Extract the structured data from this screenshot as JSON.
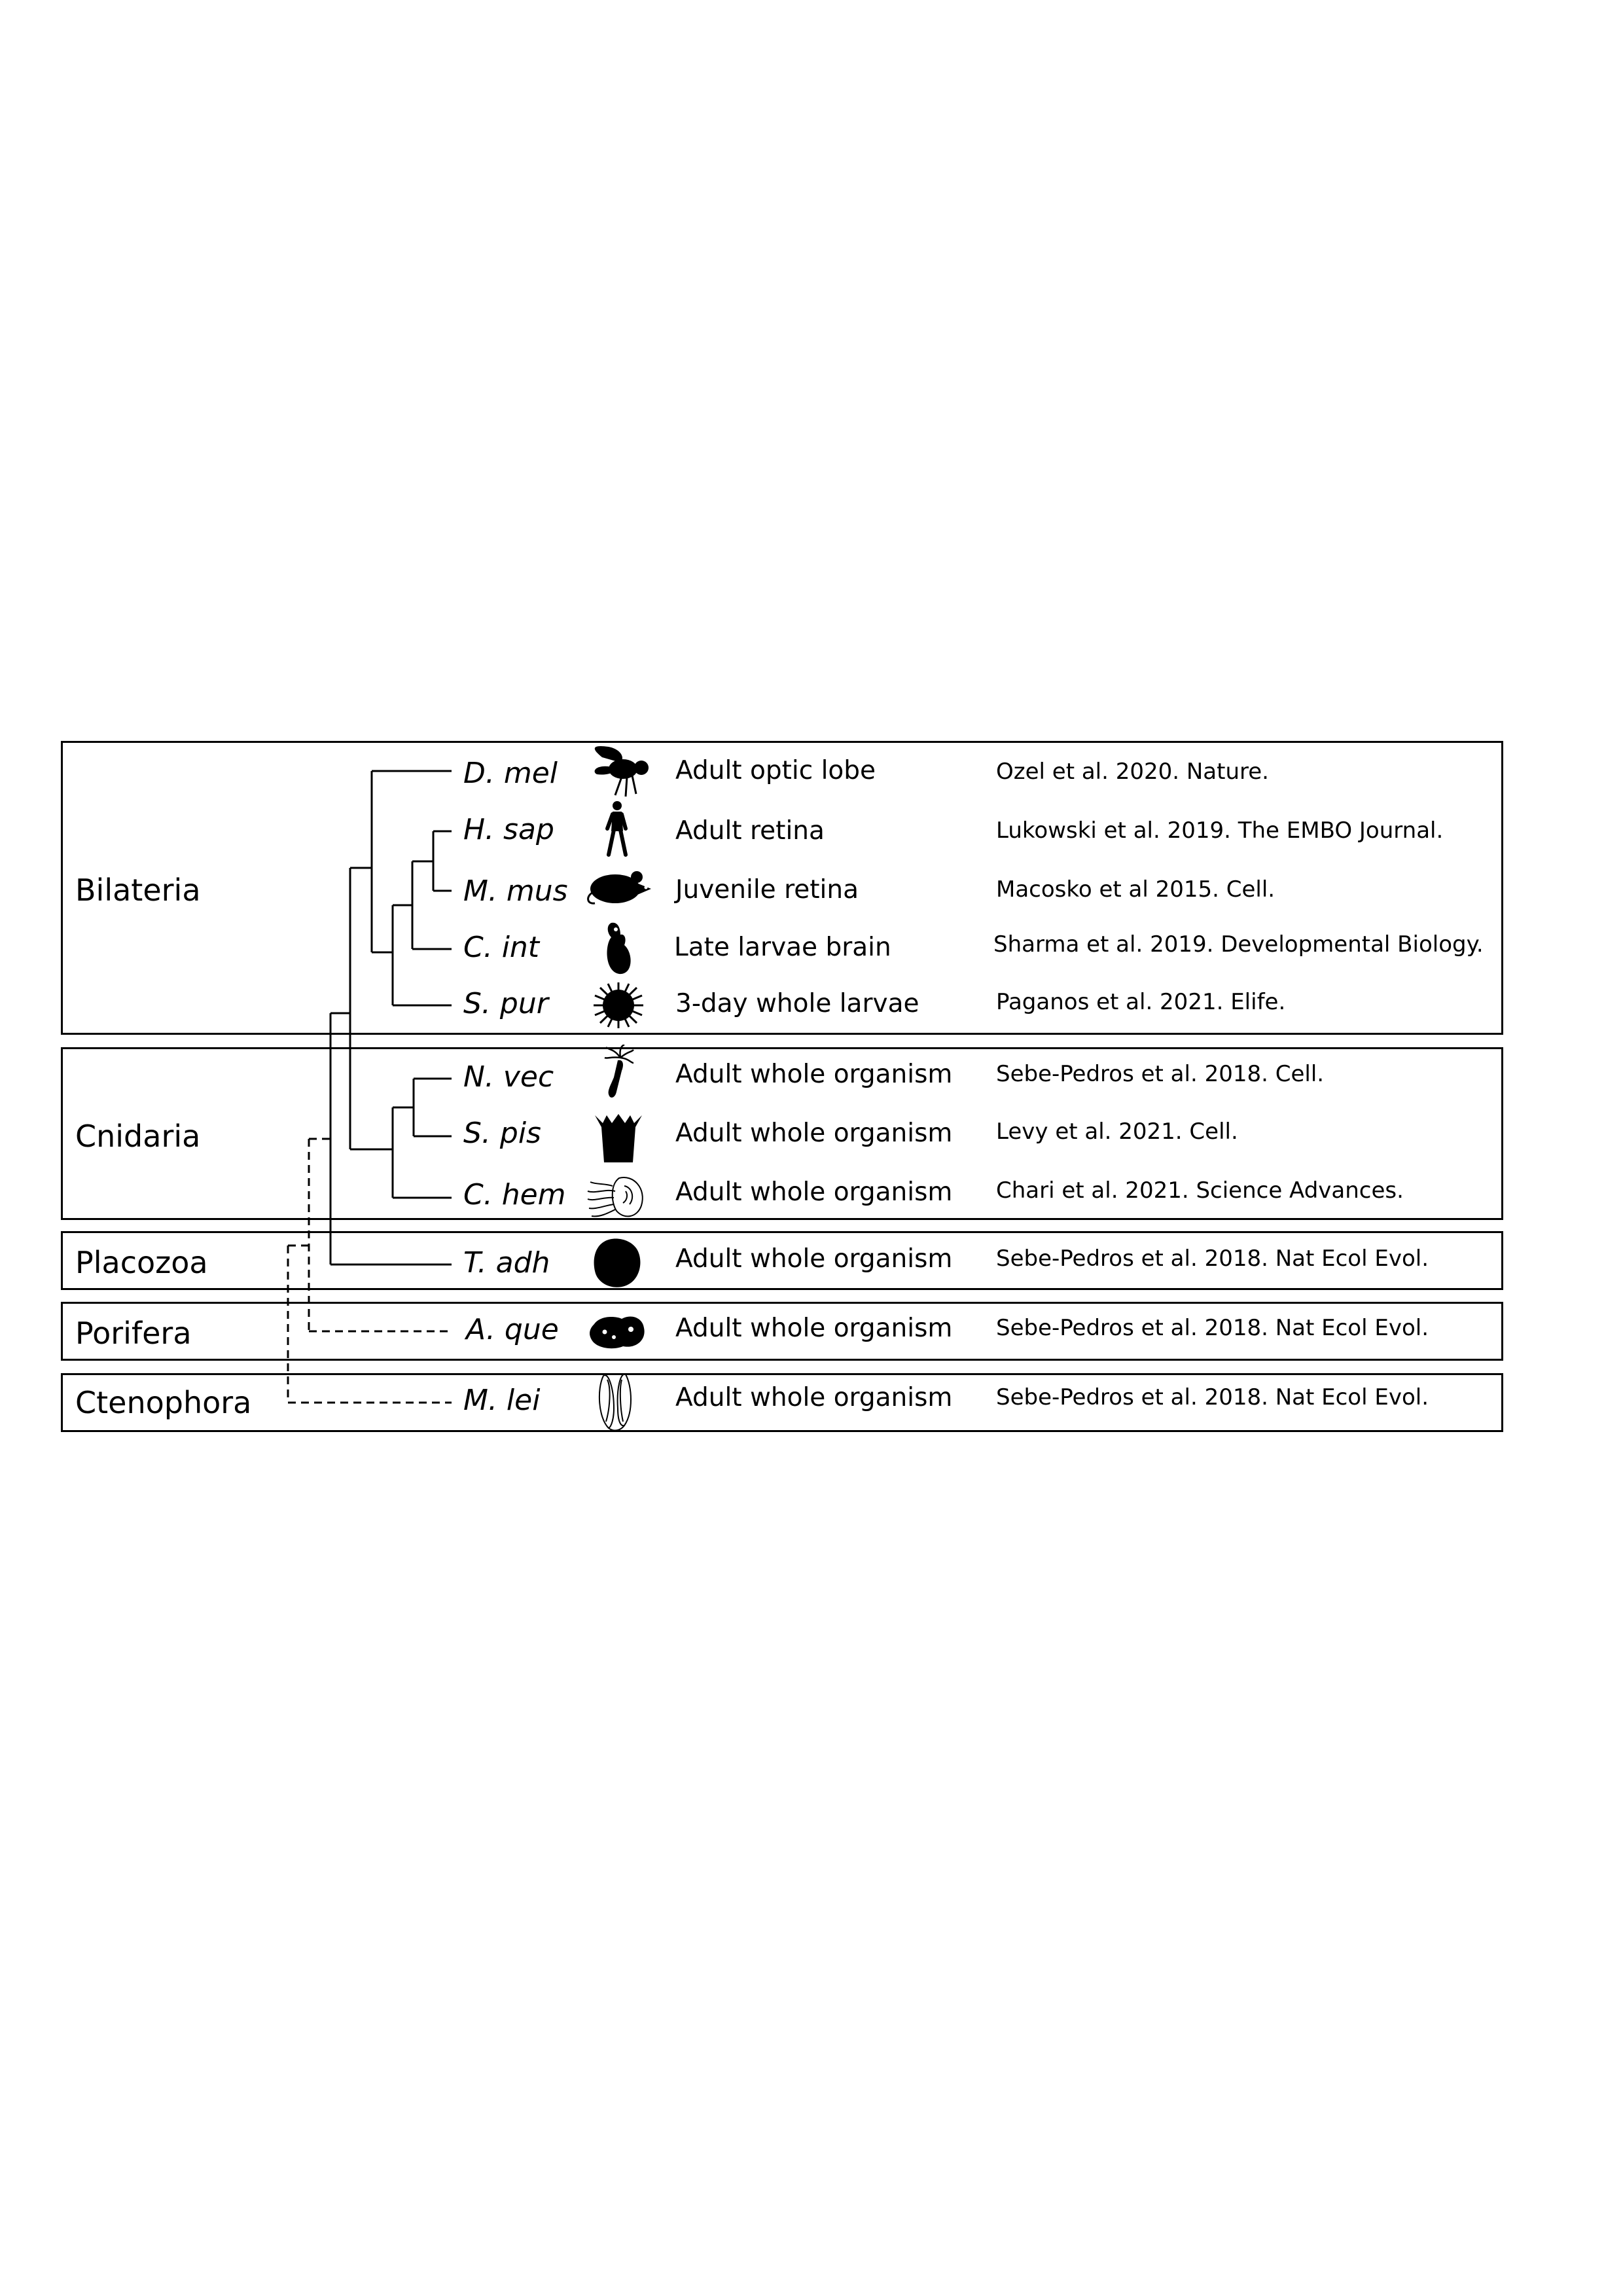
{
  "clades": [
    {
      "name": "Bilateria"
    },
    {
      "name": "Cnidaria"
    },
    {
      "name": "Placozoa"
    },
    {
      "name": "Porifera"
    },
    {
      "name": "Ctenophora"
    }
  ],
  "rows": [
    {
      "species": "D. mel",
      "icon": "fly-icon",
      "tissue": "Adult optic lobe",
      "reference": "Ozel et al. 2020. Nature."
    },
    {
      "species": "H. sap",
      "icon": "human-icon",
      "tissue": "Adult retina",
      "reference": "Lukowski et al. 2019. The EMBO Journal."
    },
    {
      "species": "M. mus",
      "icon": "mouse-icon",
      "tissue": "Juvenile retina",
      "reference": "Macosko et al 2015. Cell."
    },
    {
      "species": "C. int",
      "icon": "ciona-icon",
      "tissue": "Late larvae brain",
      "reference": "Sharma et al. 2019. Developmental Biology."
    },
    {
      "species": "S. pur",
      "icon": "sea-urchin-icon",
      "tissue": "3-day whole larvae",
      "reference": "Paganos et al. 2021. Elife."
    },
    {
      "species": "N. vec",
      "icon": "sea-anemone-icon",
      "tissue": "Adult whole organism",
      "reference": "Sebe-Pedros et al. 2018. Cell."
    },
    {
      "species": "S. pis",
      "icon": "coral-polyp-icon",
      "tissue": "Adult whole organism",
      "reference": "Levy et al. 2021. Cell."
    },
    {
      "species": "C. hem",
      "icon": "jellyfish-icon",
      "tissue": "Adult whole organism",
      "reference": "Chari et al. 2021. Science Advances."
    },
    {
      "species": "T. adh",
      "icon": "placozoan-icon",
      "tissue": "Adult whole organism",
      "reference": "Sebe-Pedros et al. 2018. Nat Ecol Evol."
    },
    {
      "species": "A. que",
      "icon": "sponge-icon",
      "tissue": "Adult whole organism",
      "reference": "Sebe-Pedros et al. 2018. Nat Ecol Evol."
    },
    {
      "species": "M. lei",
      "icon": "comb-jelly-icon",
      "tissue": "Adult whole organism",
      "reference": "Sebe-Pedros et al. 2018. Nat Ecol Evol."
    }
  ],
  "tree": {
    "solid_branches": [
      "Bilateria",
      "Cnidaria",
      "Placozoa"
    ],
    "dashed_branches": [
      "Porifera",
      "Ctenophora"
    ]
  },
  "colors": {
    "line": "#000000",
    "background": "#ffffff"
  }
}
